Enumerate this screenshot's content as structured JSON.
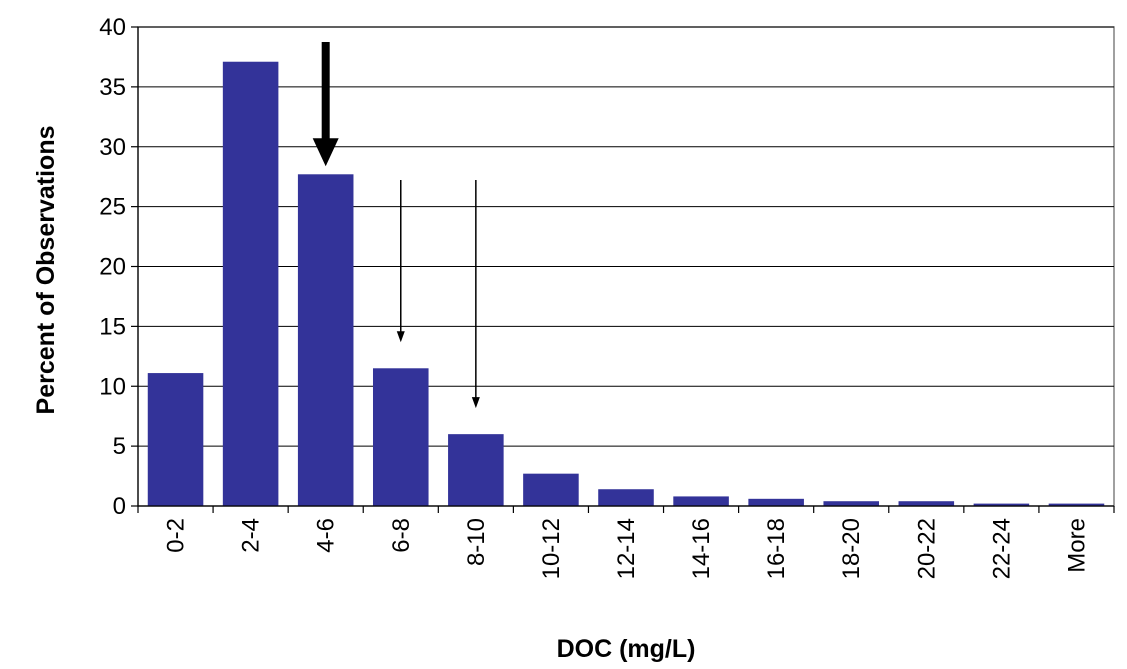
{
  "chart_data": {
    "type": "bar",
    "title": "",
    "xlabel": "DOC (mg/L)",
    "ylabel": "Percent of Observations",
    "categories": [
      "0-2",
      "2-4",
      "4-6",
      "6-8",
      "8-10",
      "10-12",
      "12-14",
      "14-16",
      "16-18",
      "18-20",
      "20-22",
      "22-24",
      "More"
    ],
    "values": [
      11.1,
      37.1,
      27.7,
      11.5,
      6.0,
      2.7,
      1.4,
      0.8,
      0.6,
      0.4,
      0.4,
      0.2,
      0.2
    ],
    "ylim": [
      0,
      40
    ],
    "yticks": [
      "0",
      "5",
      "10",
      "15",
      "20",
      "25",
      "30",
      "35",
      "40"
    ],
    "grid": true,
    "bar_color": "#333399",
    "annotations": [
      {
        "type": "arrow",
        "style": "thick",
        "category": "4-6"
      },
      {
        "type": "arrow",
        "style": "thin",
        "category": "6-8"
      },
      {
        "type": "arrow",
        "style": "thin",
        "category": "8-10"
      }
    ]
  }
}
